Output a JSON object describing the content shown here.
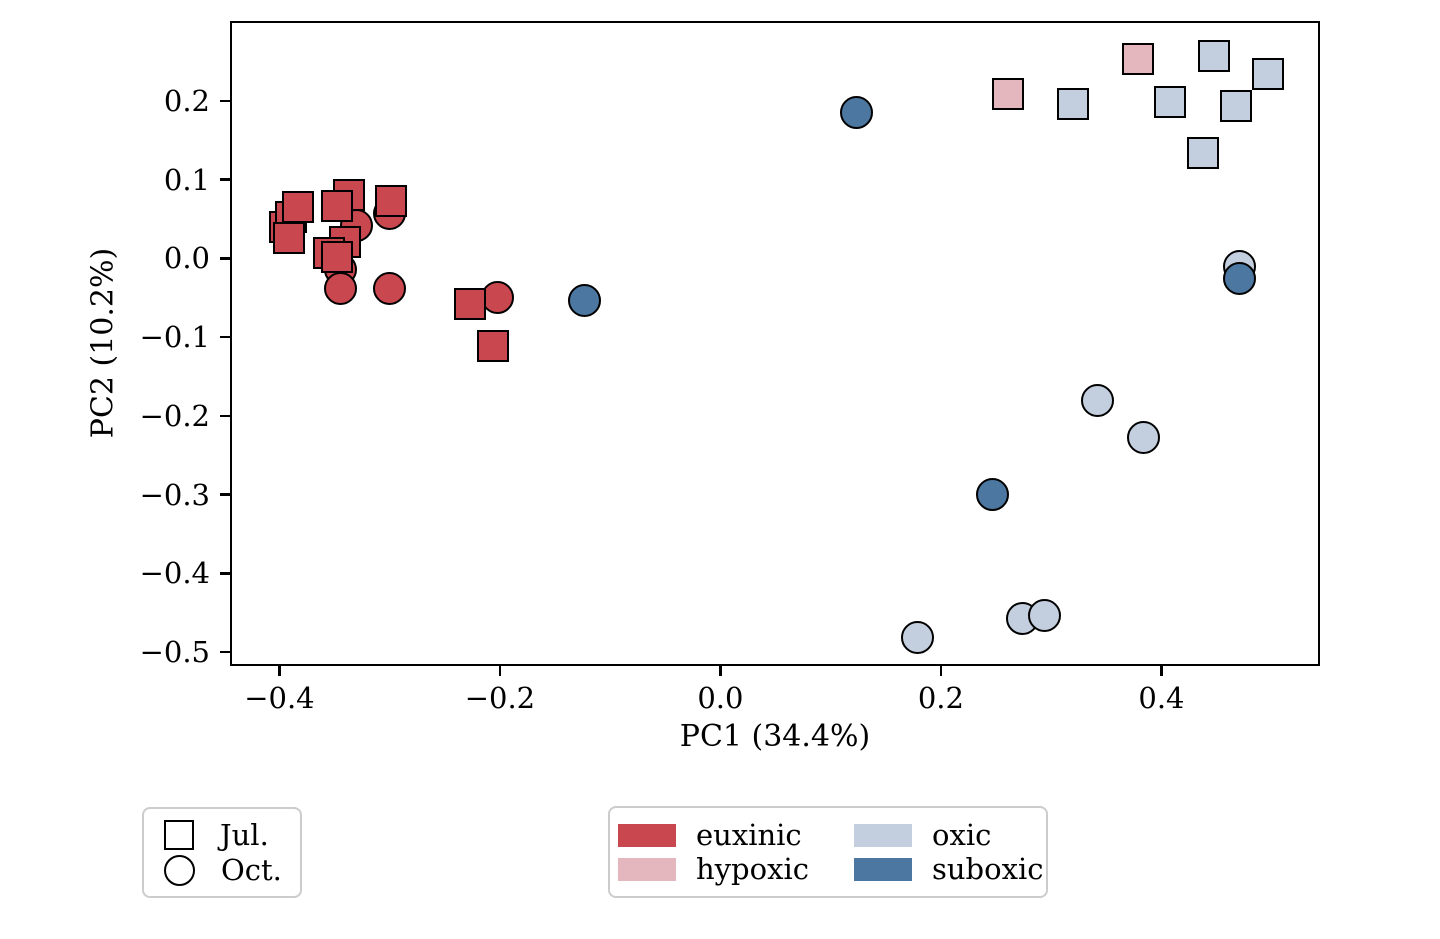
{
  "chart_data": {
    "type": "scatter",
    "title": "",
    "xlabel": "PC1 (34.4%)",
    "ylabel": "PC2 (10.2%)",
    "xlim": [
      -0.443,
      0.542
    ],
    "ylim": [
      -0.515,
      0.299
    ],
    "grid": false,
    "marker_edge_color": "#000000",
    "xticks": [
      -0.4,
      -0.2,
      0.0,
      0.2,
      0.4
    ],
    "xtick_labels": [
      "−0.4",
      "−0.2",
      "0.0",
      "0.2",
      "0.4"
    ],
    "yticks": [
      0.2,
      0.1,
      0.0,
      -0.1,
      -0.2,
      -0.3,
      -0.4,
      -0.5
    ],
    "ytick_labels": [
      "0.2",
      "0.1",
      "0.0",
      "−0.1",
      "−0.2",
      "−0.3",
      "−0.4",
      "−0.5"
    ],
    "series": [
      {
        "name": "oxic-oct",
        "condition": "oxic",
        "month": "Oct.",
        "marker": "circle",
        "color": "#c3cfde",
        "points": [
          [
            0.469,
            -0.008
          ],
          [
            0.34,
            -0.178
          ],
          [
            0.382,
            -0.225
          ],
          [
            0.272,
            -0.455
          ],
          [
            0.292,
            -0.451
          ],
          [
            0.177,
            -0.479
          ]
        ]
      },
      {
        "name": "suboxic-oct",
        "condition": "suboxic",
        "month": "Oct.",
        "marker": "circle",
        "color": "#4b77a1",
        "points": [
          [
            -0.125,
            -0.051
          ],
          [
            0.122,
            0.188
          ],
          [
            0.469,
            -0.023
          ],
          [
            0.245,
            -0.297
          ]
        ]
      },
      {
        "name": "euxinic-oct",
        "condition": "euxinic",
        "month": "Oct.",
        "marker": "circle",
        "color": "#c9484f",
        "points": [
          [
            -0.332,
            0.044
          ],
          [
            -0.302,
            0.06
          ],
          [
            -0.346,
            -0.012
          ],
          [
            -0.346,
            -0.036
          ],
          [
            -0.302,
            -0.036
          ],
          [
            -0.204,
            -0.047
          ]
        ]
      },
      {
        "name": "euxinic-jul",
        "condition": "euxinic",
        "month": "Jul.",
        "marker": "square",
        "color": "#c9484f",
        "points": [
          [
            -0.397,
            0.043
          ],
          [
            -0.391,
            0.055
          ],
          [
            -0.385,
            0.068
          ],
          [
            -0.393,
            0.029
          ],
          [
            -0.339,
            0.083
          ],
          [
            -0.35,
            0.069
          ],
          [
            -0.342,
            0.023
          ],
          [
            -0.357,
            0.009
          ],
          [
            -0.35,
            0.005
          ],
          [
            -0.301,
            0.076
          ],
          [
            -0.229,
            -0.055
          ],
          [
            -0.208,
            -0.109
          ]
        ]
      },
      {
        "name": "hypoxic-jul",
        "condition": "hypoxic",
        "month": "Jul.",
        "marker": "square",
        "color": "#e4b6be",
        "points": [
          [
            0.259,
            0.211
          ],
          [
            0.377,
            0.256
          ]
        ]
      },
      {
        "name": "oxic-jul",
        "condition": "oxic",
        "month": "Jul.",
        "marker": "square",
        "color": "#c3cfde",
        "points": [
          [
            0.318,
            0.199
          ],
          [
            0.406,
            0.201
          ],
          [
            0.446,
            0.26
          ],
          [
            0.466,
            0.196
          ],
          [
            0.495,
            0.237
          ],
          [
            0.436,
            0.136
          ]
        ]
      }
    ],
    "legend_markers": [
      {
        "label": "Jul.",
        "marker": "square"
      },
      {
        "label": "Oct.",
        "marker": "circle"
      }
    ],
    "legend_colors": [
      {
        "label": "euxinic",
        "color": "#c9484f"
      },
      {
        "label": "oxic",
        "color": "#c3cfde"
      },
      {
        "label": "hypoxic",
        "color": "#e4b6be"
      },
      {
        "label": "suboxic",
        "color": "#4b77a1"
      }
    ]
  }
}
